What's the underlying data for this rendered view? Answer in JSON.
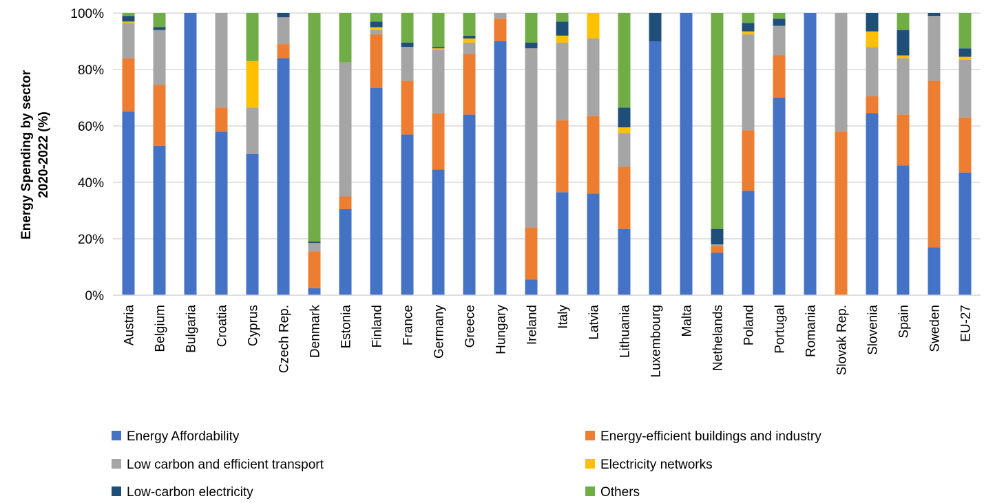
{
  "chart_data": {
    "type": "bar",
    "stacked": true,
    "ylabel_lines": [
      "Energy Spending by sector",
      "2020-2022 (%)"
    ],
    "ylim": [
      0,
      100
    ],
    "yticks": [
      "0%",
      "20%",
      "40%",
      "60%",
      "80%",
      "100%"
    ],
    "grid": true,
    "legend_position": "bottom",
    "categories": [
      "Austria",
      "Belgium",
      "Bulgaria",
      "Croatia",
      "Cyprus",
      "Czech Rep.",
      "Denmark",
      "Estonia",
      "Finland",
      "France",
      "Germany",
      "Greece",
      "Hungary",
      "Ireland",
      "Italy",
      "Latvia",
      "Lithuania",
      "Luxembourg",
      "Malta",
      "Nethelands",
      "Poland",
      "Portugal",
      "Romania",
      "Slovak Rep.",
      "Slovenia",
      "Spain",
      "Sweden",
      "EU-27"
    ],
    "series": [
      {
        "name": "Energy Affordability",
        "color": "#4472C4",
        "values": [
          65,
          53,
          100,
          58,
          50,
          84,
          2.5,
          30.5,
          73.5,
          57,
          44.5,
          64,
          90,
          5.5,
          36.5,
          36,
          23.5,
          90,
          100,
          15,
          37,
          70,
          100,
          0,
          64.5,
          46,
          17,
          43.5
        ]
      },
      {
        "name": "Energy-efficient buildings and industry",
        "color": "#ED7D31",
        "values": [
          19,
          21.5,
          0,
          8.5,
          0,
          5,
          13,
          4.5,
          19,
          19,
          20,
          21.5,
          8,
          18.5,
          25.5,
          27.5,
          22,
          0,
          0,
          2.5,
          21.5,
          15,
          0,
          58,
          6,
          18,
          59,
          19.5
        ]
      },
      {
        "name": "Low carbon and efficient transport",
        "color": "#A5A5A5",
        "values": [
          12.5,
          19.5,
          0,
          33.5,
          16.5,
          9.5,
          3,
          47.5,
          1.5,
          12,
          22.5,
          4,
          2,
          63.5,
          27.5,
          27.5,
          12,
          0,
          0,
          0.5,
          34,
          10.5,
          0,
          42,
          17.5,
          20,
          23,
          20.5
        ]
      },
      {
        "name": "Electricity networks",
        "color": "#FFC000",
        "values": [
          0.5,
          0,
          0,
          0,
          16.5,
          0,
          0,
          0,
          1,
          0,
          0.5,
          1.5,
          0,
          0,
          2.5,
          9,
          2,
          0,
          0,
          0,
          1,
          0,
          0,
          0,
          5.5,
          1,
          0,
          1
        ]
      },
      {
        "name": "Low-carbon electricity",
        "color": "#1F4E79",
        "values": [
          2,
          1,
          0,
          0,
          0,
          1.5,
          0.5,
          0,
          2,
          1.5,
          0.5,
          1,
          0,
          2,
          5,
          0,
          7,
          10,
          0,
          5.5,
          3,
          2.5,
          0,
          0,
          6.5,
          9,
          1,
          3
        ]
      },
      {
        "name": "Others",
        "color": "#70AD47",
        "values": [
          1,
          5,
          0,
          0,
          17,
          0,
          81,
          17.5,
          3,
          10.5,
          12,
          8,
          0,
          10.5,
          3,
          0,
          33.5,
          0,
          0,
          76.5,
          3.5,
          2,
          0,
          0,
          0,
          6,
          0,
          12.5
        ]
      }
    ]
  }
}
